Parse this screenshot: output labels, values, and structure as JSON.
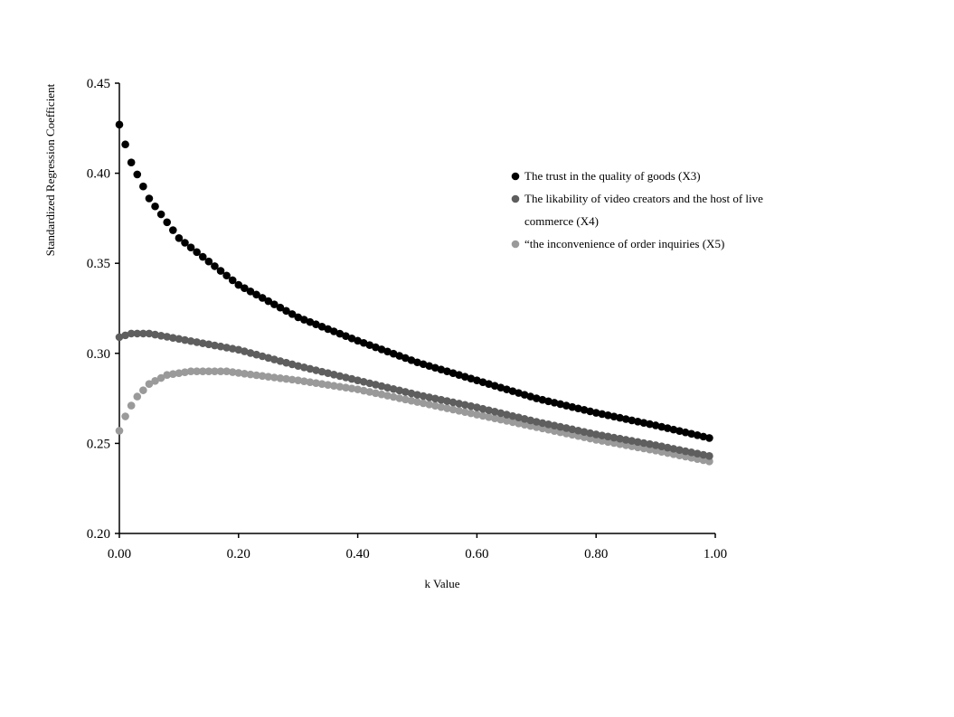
{
  "chart_data": {
    "type": "scatter",
    "title": "",
    "xlabel": "k Value",
    "ylabel": "Standardized Regression Coefficient",
    "xlim": [
      0,
      1
    ],
    "ylim": [
      0.2,
      0.45
    ],
    "x_ticks": [
      "0.00",
      "0.20",
      "0.40",
      "0.60",
      "0.80",
      "1.00"
    ],
    "y_ticks": [
      "0.20",
      "0.25",
      "0.30",
      "0.35",
      "0.40",
      "0.45"
    ],
    "grid": false,
    "legend_position": "top-right",
    "x_step": 0.01,
    "x_count": 100,
    "series": [
      {
        "name": "The trust in the quality of goods (X3)",
        "legend_lines": [
          "The trust in the quality of goods (X3)"
        ],
        "color": "#000000",
        "key_points": [
          [
            0.0,
            0.427
          ],
          [
            0.01,
            0.416
          ],
          [
            0.02,
            0.406
          ],
          [
            0.05,
            0.386
          ],
          [
            0.1,
            0.364
          ],
          [
            0.2,
            0.338
          ],
          [
            0.3,
            0.32
          ],
          [
            0.4,
            0.307
          ],
          [
            0.5,
            0.295
          ],
          [
            0.6,
            0.285
          ],
          [
            0.7,
            0.275
          ],
          [
            0.8,
            0.267
          ],
          [
            0.9,
            0.26
          ],
          [
            0.99,
            0.253
          ]
        ]
      },
      {
        "name": "The likability of video creators and the host of live commerce (X4)",
        "legend_lines": [
          "The likability of video creators and the host of live",
          "commerce (X4)"
        ],
        "color": "#5e5e5e",
        "key_points": [
          [
            0.0,
            0.309
          ],
          [
            0.02,
            0.311
          ],
          [
            0.05,
            0.311
          ],
          [
            0.1,
            0.308
          ],
          [
            0.2,
            0.302
          ],
          [
            0.3,
            0.293
          ],
          [
            0.4,
            0.285
          ],
          [
            0.5,
            0.277
          ],
          [
            0.6,
            0.27
          ],
          [
            0.7,
            0.262
          ],
          [
            0.8,
            0.255
          ],
          [
            0.9,
            0.249
          ],
          [
            0.99,
            0.243
          ]
        ]
      },
      {
        "name": "“the inconvenience of order inquiries (X5)",
        "legend_lines": [
          "“the inconvenience of order inquiries (X5)"
        ],
        "color": "#9a9a9a",
        "key_points": [
          [
            0.0,
            0.257
          ],
          [
            0.01,
            0.265
          ],
          [
            0.02,
            0.271
          ],
          [
            0.03,
            0.276
          ],
          [
            0.05,
            0.283
          ],
          [
            0.08,
            0.288
          ],
          [
            0.12,
            0.29
          ],
          [
            0.18,
            0.29
          ],
          [
            0.25,
            0.287
          ],
          [
            0.3,
            0.285
          ],
          [
            0.4,
            0.28
          ],
          [
            0.5,
            0.273
          ],
          [
            0.6,
            0.266
          ],
          [
            0.7,
            0.259
          ],
          [
            0.8,
            0.252
          ],
          [
            0.9,
            0.246
          ],
          [
            0.99,
            0.24
          ]
        ]
      }
    ]
  }
}
